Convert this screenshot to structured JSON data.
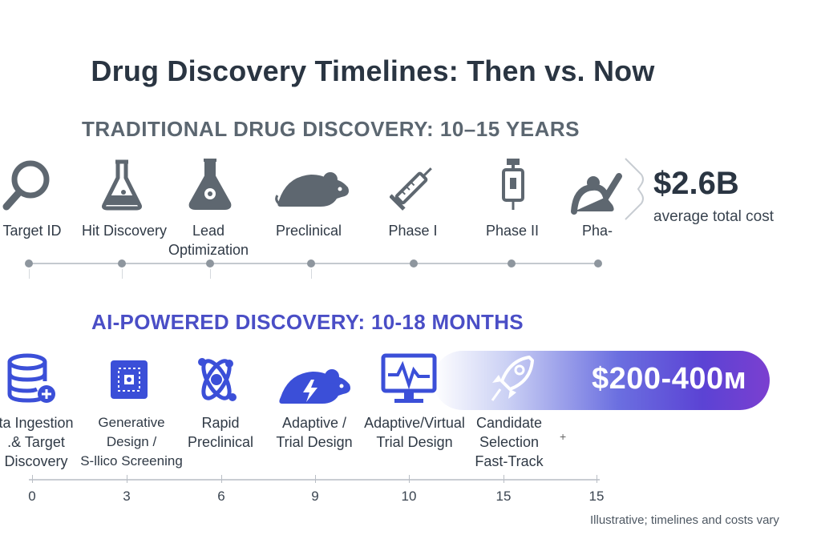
{
  "title": "Drug Discovery Timelines: Then vs. Now",
  "traditional": {
    "heading": "TRADITIONAL DRUG DISCOVERY: 10–15 YEARS",
    "stages": [
      {
        "label": "Target ID",
        "icon": "magnifier-icon"
      },
      {
        "label": "Hit Discovery",
        "icon": "flask-icon"
      },
      {
        "label": "Lead\nOptimization",
        "icon": "flask-gear-icon"
      },
      {
        "label": "Preclinical",
        "icon": "mouse-icon"
      },
      {
        "label": "Phase I",
        "icon": "syringe-icon"
      },
      {
        "label": "Phase II",
        "icon": "vial-icon"
      },
      {
        "label": "Pha⁠⁠-",
        "icon": "check-figure-icon"
      }
    ],
    "cost_value": "$2.6B",
    "cost_label": "average total cost"
  },
  "ai": {
    "heading": "AI-POWERED DISCOVERY: 10-18 MONTHS",
    "stages": [
      {
        "label": "ta Ingestion\n.& Target\nDiscovery",
        "icon": "database-icon"
      },
      {
        "label": "Generative\nDesign /\nS-llico Screening",
        "icon": "chip-icon"
      },
      {
        "label": "Rapid\nPreclinical",
        "icon": "molecule-icon"
      },
      {
        "label": "Adaptive /\nTrial Design",
        "icon": "lightning-mouse-icon"
      },
      {
        "label": "Adaptive/Virtual\nTrial Design",
        "icon": "monitor-pulse-icon"
      },
      {
        "label": "Candidate\nSelection\nFast-Track",
        "icon": "rocket-icon"
      }
    ],
    "cost_value": "$200-400м",
    "plus_mark": "+",
    "axis_ticks": [
      "0",
      "3",
      "6",
      "9",
      "10",
      "15",
      "15"
    ]
  },
  "footnote": "Illustrative; timelines and costs vary",
  "colors": {
    "title": "#2a3542",
    "traditional_heading": "#5b6670",
    "ai_heading": "#4a4ec6",
    "icon_gray": "#5e6770",
    "icon_blue": "#3b4fd8",
    "banner_start": "#a0aaeb",
    "banner_end": "#7b3fd0"
  }
}
